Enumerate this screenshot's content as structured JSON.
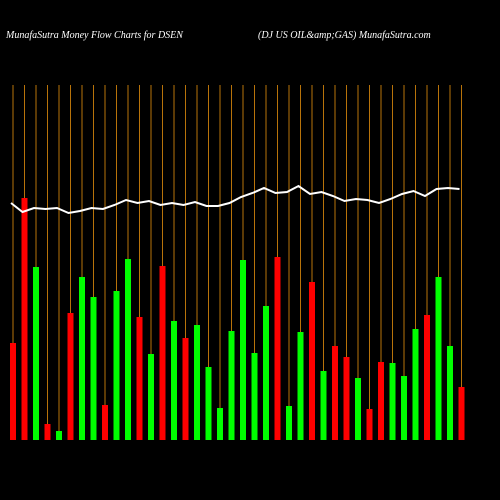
{
  "chart_data": {
    "type": "bar",
    "title": "MunafaSutra  Money Flow  Charts for DSEN",
    "subtitle": "(DJ US OIL&amp;GAS) MunafaSutra.com",
    "grid": true,
    "grid_color": "#b8730a",
    "line_color": "#ffffff",
    "ylim": [
      0,
      250
    ],
    "y2lim": [
      0,
      250
    ],
    "series": [
      {
        "name": "Money Flow",
        "values": [
          97,
          242,
          173,
          16,
          9,
          127,
          163,
          143,
          35,
          149,
          181,
          123,
          86,
          174,
          119,
          102,
          115,
          73,
          32,
          109,
          180,
          87,
          134,
          183,
          34,
          108,
          158,
          69,
          94,
          83,
          62,
          31,
          78,
          77,
          64,
          111,
          125,
          163,
          94,
          53
        ],
        "colors": [
          "#ff0000",
          "#ff0000",
          "#00ff00",
          "#ff0000",
          "#00ff00",
          "#ff0000",
          "#00ff00",
          "#00ff00",
          "#ff0000",
          "#00ff00",
          "#00ff00",
          "#ff0000",
          "#00ff00",
          "#ff0000",
          "#00ff00",
          "#ff0000",
          "#00ff00",
          "#00ff00",
          "#00ff00",
          "#00ff00",
          "#00ff00",
          "#00ff00",
          "#00ff00",
          "#ff0000",
          "#00ff00",
          "#00ff00",
          "#ff0000",
          "#00ff00",
          "#ff0000",
          "#ff0000",
          "#00ff00",
          "#ff0000",
          "#ff0000",
          "#00ff00",
          "#00ff00",
          "#00ff00",
          "#ff0000",
          "#00ff00",
          "#00ff00",
          "#ff0000"
        ]
      },
      {
        "name": "Price",
        "type": "line",
        "axis": "y2",
        "values": [
          237,
          228,
          232,
          231,
          232,
          227,
          229,
          232,
          231,
          235,
          240,
          237,
          239,
          235,
          237,
          235,
          238,
          234,
          234,
          237,
          243,
          247,
          252,
          247,
          248,
          254,
          246,
          248,
          244,
          239,
          241,
          240,
          237,
          241,
          246,
          249,
          244,
          251,
          252,
          251
        ]
      }
    ]
  }
}
